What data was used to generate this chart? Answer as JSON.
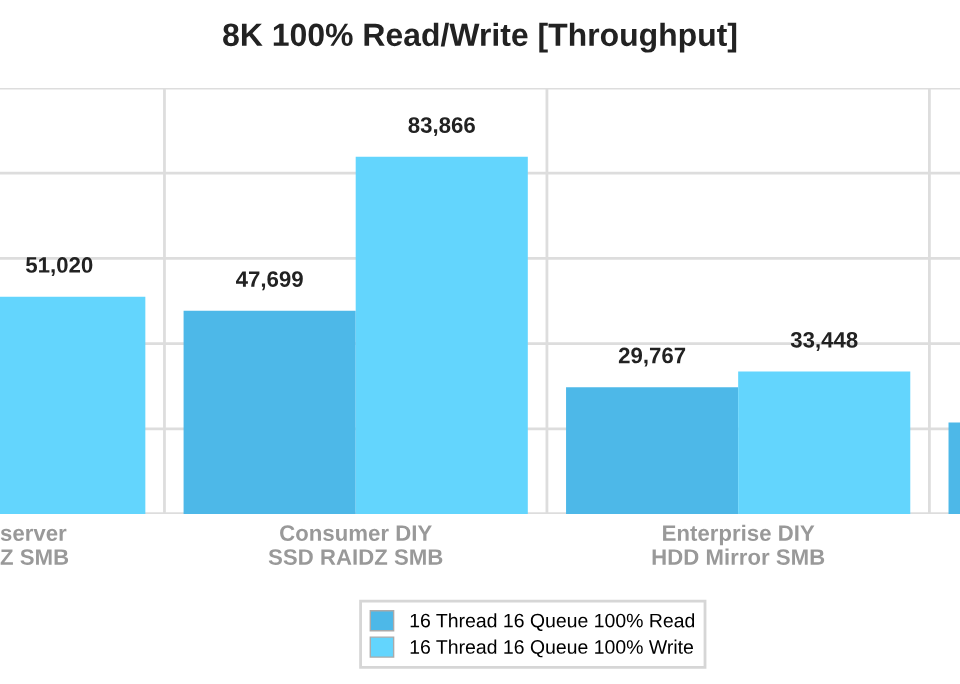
{
  "chart_data": {
    "type": "bar",
    "title": "8K 100% Read/Write [Throughput]",
    "categories": [
      "server\nZ SMB",
      "Consumer DIY\nSSD RAIDZ SMB",
      "Enterprise DIY\nHDD Mirror SMB",
      null
    ],
    "series": [
      {
        "name": "16 Thread 16 Queue 100% Read",
        "color": "#4db8e8",
        "values": [
          null,
          47699,
          29767,
          21500
        ],
        "value_labels": [
          null,
          "47,699",
          "29,767",
          null
        ]
      },
      {
        "name": "16 Thread 16 Queue 100% Write",
        "color": "#63d5fd",
        "values": [
          51020,
          83866,
          33448,
          null
        ],
        "value_labels": [
          "51,020",
          "83,866",
          "33,448",
          null
        ]
      }
    ],
    "ylim": [
      0,
      100000
    ],
    "yticks": [
      {
        "value": 0,
        "label": null
      },
      {
        "value": 20000,
        "label": null
      },
      {
        "value": 40000,
        "label": null
      },
      {
        "value": 60000,
        "label": null
      },
      {
        "value": 80000,
        "label": null
      },
      {
        "value": 100000,
        "label": null
      }
    ],
    "tick_labels": "x",
    "grid": true,
    "legend": "bottom"
  }
}
